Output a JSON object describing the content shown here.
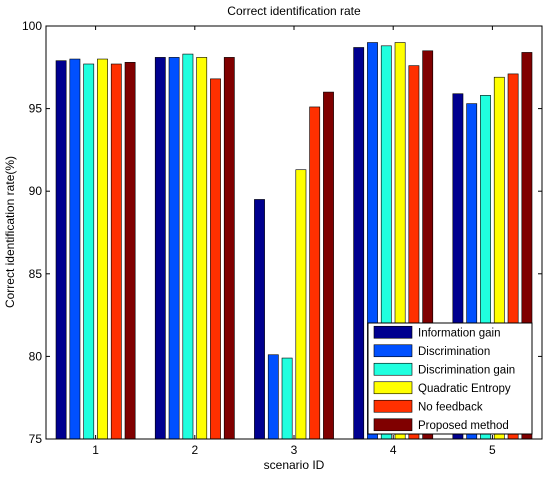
{
  "chart_data": {
    "type": "bar",
    "title": "Correct identification rate",
    "xlabel": "scenario ID",
    "ylabel": "Correct identification rate(%)",
    "ylim": [
      75,
      100
    ],
    "yticks": [
      75,
      80,
      85,
      90,
      95,
      100
    ],
    "categories": [
      "1",
      "2",
      "3",
      "4",
      "5"
    ],
    "grid": false,
    "legend_position": "bottom-right",
    "series": [
      {
        "name": "Information gain",
        "color": "#00008f",
        "values": [
          97.9,
          98.1,
          89.5,
          98.7,
          95.9
        ]
      },
      {
        "name": "Discrimination",
        "color": "#0050ff",
        "values": [
          98.0,
          98.1,
          80.1,
          99.0,
          95.3
        ]
      },
      {
        "name": "Discrimination gain",
        "color": "#20ffdf",
        "values": [
          97.7,
          98.3,
          79.9,
          98.8,
          95.8
        ]
      },
      {
        "name": "Quadratic Entropy",
        "color": "#ffff00",
        "values": [
          98.0,
          98.1,
          91.3,
          99.0,
          96.9
        ]
      },
      {
        "name": "No feedback",
        "color": "#ff3000",
        "values": [
          97.7,
          96.8,
          95.1,
          97.6,
          97.1
        ]
      },
      {
        "name": "Proposed method",
        "color": "#800000",
        "values": [
          97.8,
          98.1,
          96.0,
          98.5,
          98.4
        ]
      }
    ]
  }
}
